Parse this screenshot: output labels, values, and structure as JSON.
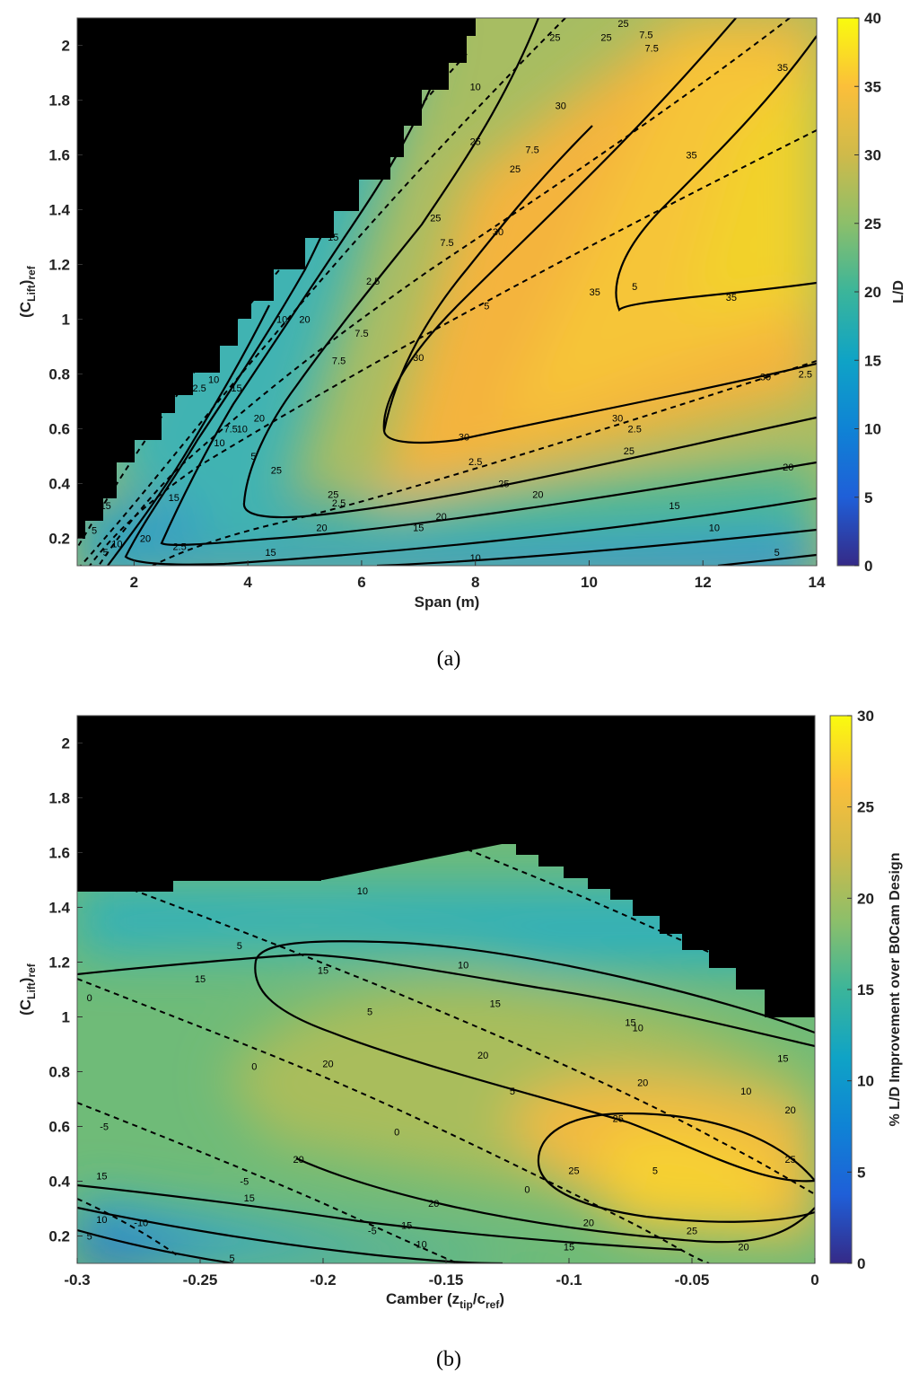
{
  "chart_data": [
    {
      "type": "heatmap",
      "caption": "(a)",
      "xlabel": "Span (m)",
      "ylabel_main": "(C",
      "ylabel_sub1": "Lift",
      "ylabel_mid": ")",
      "ylabel_sub2": "ref",
      "xlim": [
        1,
        14
      ],
      "ylim": [
        0.1,
        2.1
      ],
      "xticks": [
        2,
        4,
        6,
        8,
        10,
        12,
        14
      ],
      "yticks": [
        0.2,
        0.4,
        0.6,
        0.8,
        1,
        1.2,
        1.4,
        1.6,
        1.8,
        2
      ],
      "colorbar": {
        "label": "L/D",
        "min": 0,
        "max": 40,
        "ticks": [
          0,
          5,
          10,
          15,
          20,
          25,
          30,
          35,
          40
        ]
      },
      "peak": {
        "x": 13.2,
        "y": 1.3,
        "value": 38
      },
      "infeasible_region": "top-left (black)",
      "solid_contour_levels": [
        5,
        10,
        15,
        20,
        25,
        30,
        35
      ],
      "dashed_contour_levels": [
        2.5,
        5,
        7.5,
        10,
        12.5,
        15
      ],
      "contour_labels": [
        {
          "x": 13.3,
          "y": 0.15,
          "text": "5",
          "style": "solid"
        },
        {
          "x": 12.2,
          "y": 0.24,
          "text": "10",
          "style": "solid"
        },
        {
          "x": 8.0,
          "y": 0.13,
          "text": "10",
          "style": "solid"
        },
        {
          "x": 7.0,
          "y": 0.24,
          "text": "15",
          "style": "solid"
        },
        {
          "x": 4.4,
          "y": 0.15,
          "text": "15",
          "style": "solid"
        },
        {
          "x": 11.5,
          "y": 0.32,
          "text": "15",
          "style": "solid"
        },
        {
          "x": 5.3,
          "y": 0.24,
          "text": "20",
          "style": "solid"
        },
        {
          "x": 7.4,
          "y": 0.28,
          "text": "20",
          "style": "solid"
        },
        {
          "x": 9.1,
          "y": 0.36,
          "text": "20",
          "style": "solid"
        },
        {
          "x": 13.5,
          "y": 0.46,
          "text": "20",
          "style": "solid"
        },
        {
          "x": 8.5,
          "y": 0.4,
          "text": "25",
          "style": "solid"
        },
        {
          "x": 10.7,
          "y": 0.52,
          "text": "25",
          "style": "solid"
        },
        {
          "x": 14.0,
          "y": 0.62,
          "text": "25",
          "style": "solid"
        },
        {
          "x": 8.0,
          "y": 0.48,
          "text": "2.5",
          "style": "dashed"
        },
        {
          "x": 5.6,
          "y": 0.33,
          "text": "2.5",
          "style": "dashed"
        },
        {
          "x": 5.5,
          "y": 0.36,
          "text": "25",
          "style": "solid"
        },
        {
          "x": 2.8,
          "y": 0.17,
          "text": "2.5",
          "style": "dashed"
        },
        {
          "x": 7.8,
          "y": 0.57,
          "text": "30",
          "style": "solid"
        },
        {
          "x": 10.5,
          "y": 0.64,
          "text": "30",
          "style": "solid"
        },
        {
          "x": 10.8,
          "y": 0.6,
          "text": "2.5",
          "style": "dashed"
        },
        {
          "x": 13.1,
          "y": 0.79,
          "text": "30",
          "style": "solid"
        },
        {
          "x": 13.8,
          "y": 0.8,
          "text": "2.5",
          "style": "dashed"
        },
        {
          "x": 7.0,
          "y": 0.86,
          "text": "30",
          "style": "solid"
        },
        {
          "x": 8.2,
          "y": 1.05,
          "text": "5",
          "style": "dashed"
        },
        {
          "x": 10.8,
          "y": 1.12,
          "text": "5",
          "style": "dashed"
        },
        {
          "x": 10.1,
          "y": 1.1,
          "text": "35",
          "style": "solid"
        },
        {
          "x": 12.5,
          "y": 1.08,
          "text": "35",
          "style": "solid"
        },
        {
          "x": 11.8,
          "y": 1.6,
          "text": "35",
          "style": "solid"
        },
        {
          "x": 13.4,
          "y": 1.92,
          "text": "35",
          "style": "solid"
        },
        {
          "x": 14.0,
          "y": 1.63,
          "text": "5",
          "style": "dashed"
        },
        {
          "x": 8.4,
          "y": 1.32,
          "text": "30",
          "style": "solid"
        },
        {
          "x": 9.5,
          "y": 1.78,
          "text": "30",
          "style": "solid"
        },
        {
          "x": 9.0,
          "y": 1.62,
          "text": "7.5",
          "style": "dashed"
        },
        {
          "x": 7.5,
          "y": 1.28,
          "text": "7.5",
          "style": "dashed"
        },
        {
          "x": 7.3,
          "y": 1.37,
          "text": "25",
          "style": "solid"
        },
        {
          "x": 8.0,
          "y": 1.65,
          "text": "25",
          "style": "solid"
        },
        {
          "x": 8.7,
          "y": 1.55,
          "text": "25",
          "style": "solid"
        },
        {
          "x": 8.0,
          "y": 1.85,
          "text": "10",
          "style": "dashed"
        },
        {
          "x": 7.6,
          "y": 2.02,
          "text": "20",
          "style": "solid"
        },
        {
          "x": 10.3,
          "y": 2.03,
          "text": "25",
          "style": "solid"
        },
        {
          "x": 10.6,
          "y": 2.08,
          "text": "25",
          "style": "solid"
        },
        {
          "x": 11.0,
          "y": 2.04,
          "text": "7.5",
          "style": "dashed"
        },
        {
          "x": 11.1,
          "y": 1.99,
          "text": "7.5",
          "style": "dashed"
        },
        {
          "x": 9.4,
          "y": 2.03,
          "text": "25",
          "style": "solid"
        },
        {
          "x": 5.8,
          "y": 1.54,
          "text": "20",
          "style": "solid"
        },
        {
          "x": 5.4,
          "y": 1.45,
          "text": "10",
          "style": "dashed"
        },
        {
          "x": 5.0,
          "y": 1.0,
          "text": "20",
          "style": "solid"
        },
        {
          "x": 4.6,
          "y": 1.0,
          "text": "10",
          "style": "dashed"
        },
        {
          "x": 6.0,
          "y": 0.95,
          "text": "7.5",
          "style": "dashed"
        },
        {
          "x": 5.6,
          "y": 0.85,
          "text": "7.5",
          "style": "dashed"
        },
        {
          "x": 4.2,
          "y": 0.64,
          "text": "20",
          "style": "solid"
        },
        {
          "x": 3.9,
          "y": 0.6,
          "text": "10",
          "style": "dashed"
        },
        {
          "x": 3.5,
          "y": 0.55,
          "text": "10",
          "style": "dashed"
        },
        {
          "x": 4.5,
          "y": 0.45,
          "text": "25",
          "style": "solid"
        },
        {
          "x": 4.1,
          "y": 0.5,
          "text": "5",
          "style": "dashed"
        },
        {
          "x": 3.7,
          "y": 0.6,
          "text": "7.5",
          "style": "dashed"
        },
        {
          "x": 3.1,
          "y": 0.75,
          "text": "12.5",
          "style": "dashed"
        },
        {
          "x": 3.4,
          "y": 0.78,
          "text": "10",
          "style": "dashed"
        },
        {
          "x": 3.8,
          "y": 0.75,
          "text": "15",
          "style": "solid"
        },
        {
          "x": 5.5,
          "y": 1.3,
          "text": "15",
          "style": "solid"
        },
        {
          "x": 4.9,
          "y": 1.3,
          "text": "15",
          "style": "solid"
        },
        {
          "x": 2.7,
          "y": 0.35,
          "text": "15",
          "style": "solid"
        },
        {
          "x": 2.2,
          "y": 0.2,
          "text": "20",
          "style": "solid"
        },
        {
          "x": 1.5,
          "y": 0.15,
          "text": "5",
          "style": "dashed"
        },
        {
          "x": 1.7,
          "y": 0.18,
          "text": "10",
          "style": "dashed"
        },
        {
          "x": 1.3,
          "y": 0.23,
          "text": "5",
          "style": "dashed"
        },
        {
          "x": 1.5,
          "y": 0.32,
          "text": "15",
          "style": "solid"
        },
        {
          "x": 6.2,
          "y": 1.14,
          "text": "2.5",
          "style": "dashed"
        }
      ]
    },
    {
      "type": "heatmap",
      "caption": "(b)",
      "xlabel_main": "Camber (z",
      "xlabel_sub1": "tip",
      "xlabel_mid": "/c",
      "xlabel_sub2": "ref",
      "xlabel_end": ")",
      "ylabel_main": "(C",
      "ylabel_sub1": "Lift",
      "ylabel_mid": ")",
      "ylabel_sub2": "ref",
      "xlim": [
        -0.3,
        0
      ],
      "ylim": [
        0.1,
        2.1
      ],
      "xticks": [
        -0.3,
        -0.25,
        -0.2,
        -0.15,
        -0.1,
        -0.05,
        0
      ],
      "yticks": [
        0.2,
        0.4,
        0.6,
        0.8,
        1,
        1.2,
        1.4,
        1.6,
        1.8,
        2
      ],
      "colorbar": {
        "label": "% L/D Improvement over B0Cam Design",
        "min": 0,
        "max": 30,
        "ticks": [
          0,
          5,
          10,
          15,
          20,
          25,
          30
        ]
      },
      "peak": {
        "x": -0.055,
        "y": 0.38,
        "value": 29
      },
      "infeasible_region": "top (black)",
      "solid_contour_levels": [
        5,
        10,
        15,
        20,
        25
      ],
      "dashed_contour_levels": [
        -10,
        -5,
        0,
        5,
        10
      ],
      "contour_labels": [
        {
          "x": -0.184,
          "y": 1.46,
          "text": "10",
          "style": "dashed"
        },
        {
          "x": -0.143,
          "y": 1.19,
          "text": "10",
          "style": "dashed"
        },
        {
          "x": -0.072,
          "y": 0.96,
          "text": "10",
          "style": "dashed"
        },
        {
          "x": -0.028,
          "y": 0.73,
          "text": "10",
          "style": "dashed"
        },
        {
          "x": -0.234,
          "y": 1.26,
          "text": "5",
          "style": "dashed"
        },
        {
          "x": -0.181,
          "y": 1.02,
          "text": "5",
          "style": "dashed"
        },
        {
          "x": -0.123,
          "y": 0.73,
          "text": "5",
          "style": "dashed"
        },
        {
          "x": -0.065,
          "y": 0.44,
          "text": "5",
          "style": "dashed"
        },
        {
          "x": -0.295,
          "y": 1.07,
          "text": "0",
          "style": "dashed"
        },
        {
          "x": -0.228,
          "y": 0.82,
          "text": "0",
          "style": "dashed"
        },
        {
          "x": -0.17,
          "y": 0.58,
          "text": "0",
          "style": "dashed"
        },
        {
          "x": -0.117,
          "y": 0.37,
          "text": "0",
          "style": "dashed"
        },
        {
          "x": -0.289,
          "y": 0.6,
          "text": "-5",
          "style": "dashed"
        },
        {
          "x": -0.232,
          "y": 0.4,
          "text": "-5",
          "style": "dashed"
        },
        {
          "x": -0.18,
          "y": 0.22,
          "text": "-5",
          "style": "dashed"
        },
        {
          "x": -0.274,
          "y": 0.25,
          "text": "-10",
          "style": "dashed"
        },
        {
          "x": -0.25,
          "y": 1.14,
          "text": "15",
          "style": "solid"
        },
        {
          "x": -0.2,
          "y": 1.17,
          "text": "15",
          "style": "solid"
        },
        {
          "x": -0.13,
          "y": 1.05,
          "text": "15",
          "style": "solid"
        },
        {
          "x": -0.075,
          "y": 0.98,
          "text": "15",
          "style": "solid"
        },
        {
          "x": -0.013,
          "y": 0.85,
          "text": "15",
          "style": "solid"
        },
        {
          "x": -0.29,
          "y": 0.42,
          "text": "15",
          "style": "solid"
        },
        {
          "x": -0.23,
          "y": 0.34,
          "text": "15",
          "style": "solid"
        },
        {
          "x": -0.166,
          "y": 0.24,
          "text": "15",
          "style": "solid"
        },
        {
          "x": -0.1,
          "y": 0.16,
          "text": "15",
          "style": "solid"
        },
        {
          "x": -0.198,
          "y": 0.83,
          "text": "20",
          "style": "solid"
        },
        {
          "x": -0.135,
          "y": 0.86,
          "text": "20",
          "style": "solid"
        },
        {
          "x": -0.07,
          "y": 0.76,
          "text": "20",
          "style": "solid"
        },
        {
          "x": -0.01,
          "y": 0.66,
          "text": "20",
          "style": "solid"
        },
        {
          "x": -0.21,
          "y": 0.48,
          "text": "20",
          "style": "solid"
        },
        {
          "x": -0.155,
          "y": 0.32,
          "text": "20",
          "style": "solid"
        },
        {
          "x": -0.092,
          "y": 0.25,
          "text": "20",
          "style": "solid"
        },
        {
          "x": -0.029,
          "y": 0.16,
          "text": "20",
          "style": "solid"
        },
        {
          "x": -0.08,
          "y": 0.63,
          "text": "25",
          "style": "solid"
        },
        {
          "x": -0.01,
          "y": 0.48,
          "text": "25",
          "style": "solid"
        },
        {
          "x": -0.098,
          "y": 0.44,
          "text": "25",
          "style": "solid"
        },
        {
          "x": -0.05,
          "y": 0.22,
          "text": "25",
          "style": "solid"
        },
        {
          "x": -0.29,
          "y": 0.26,
          "text": "10",
          "style": "solid"
        },
        {
          "x": -0.16,
          "y": 0.17,
          "text": "10",
          "style": "solid"
        },
        {
          "x": -0.295,
          "y": 0.2,
          "text": "5",
          "style": "solid"
        },
        {
          "x": -0.237,
          "y": 0.12,
          "text": "5",
          "style": "solid"
        }
      ]
    }
  ]
}
